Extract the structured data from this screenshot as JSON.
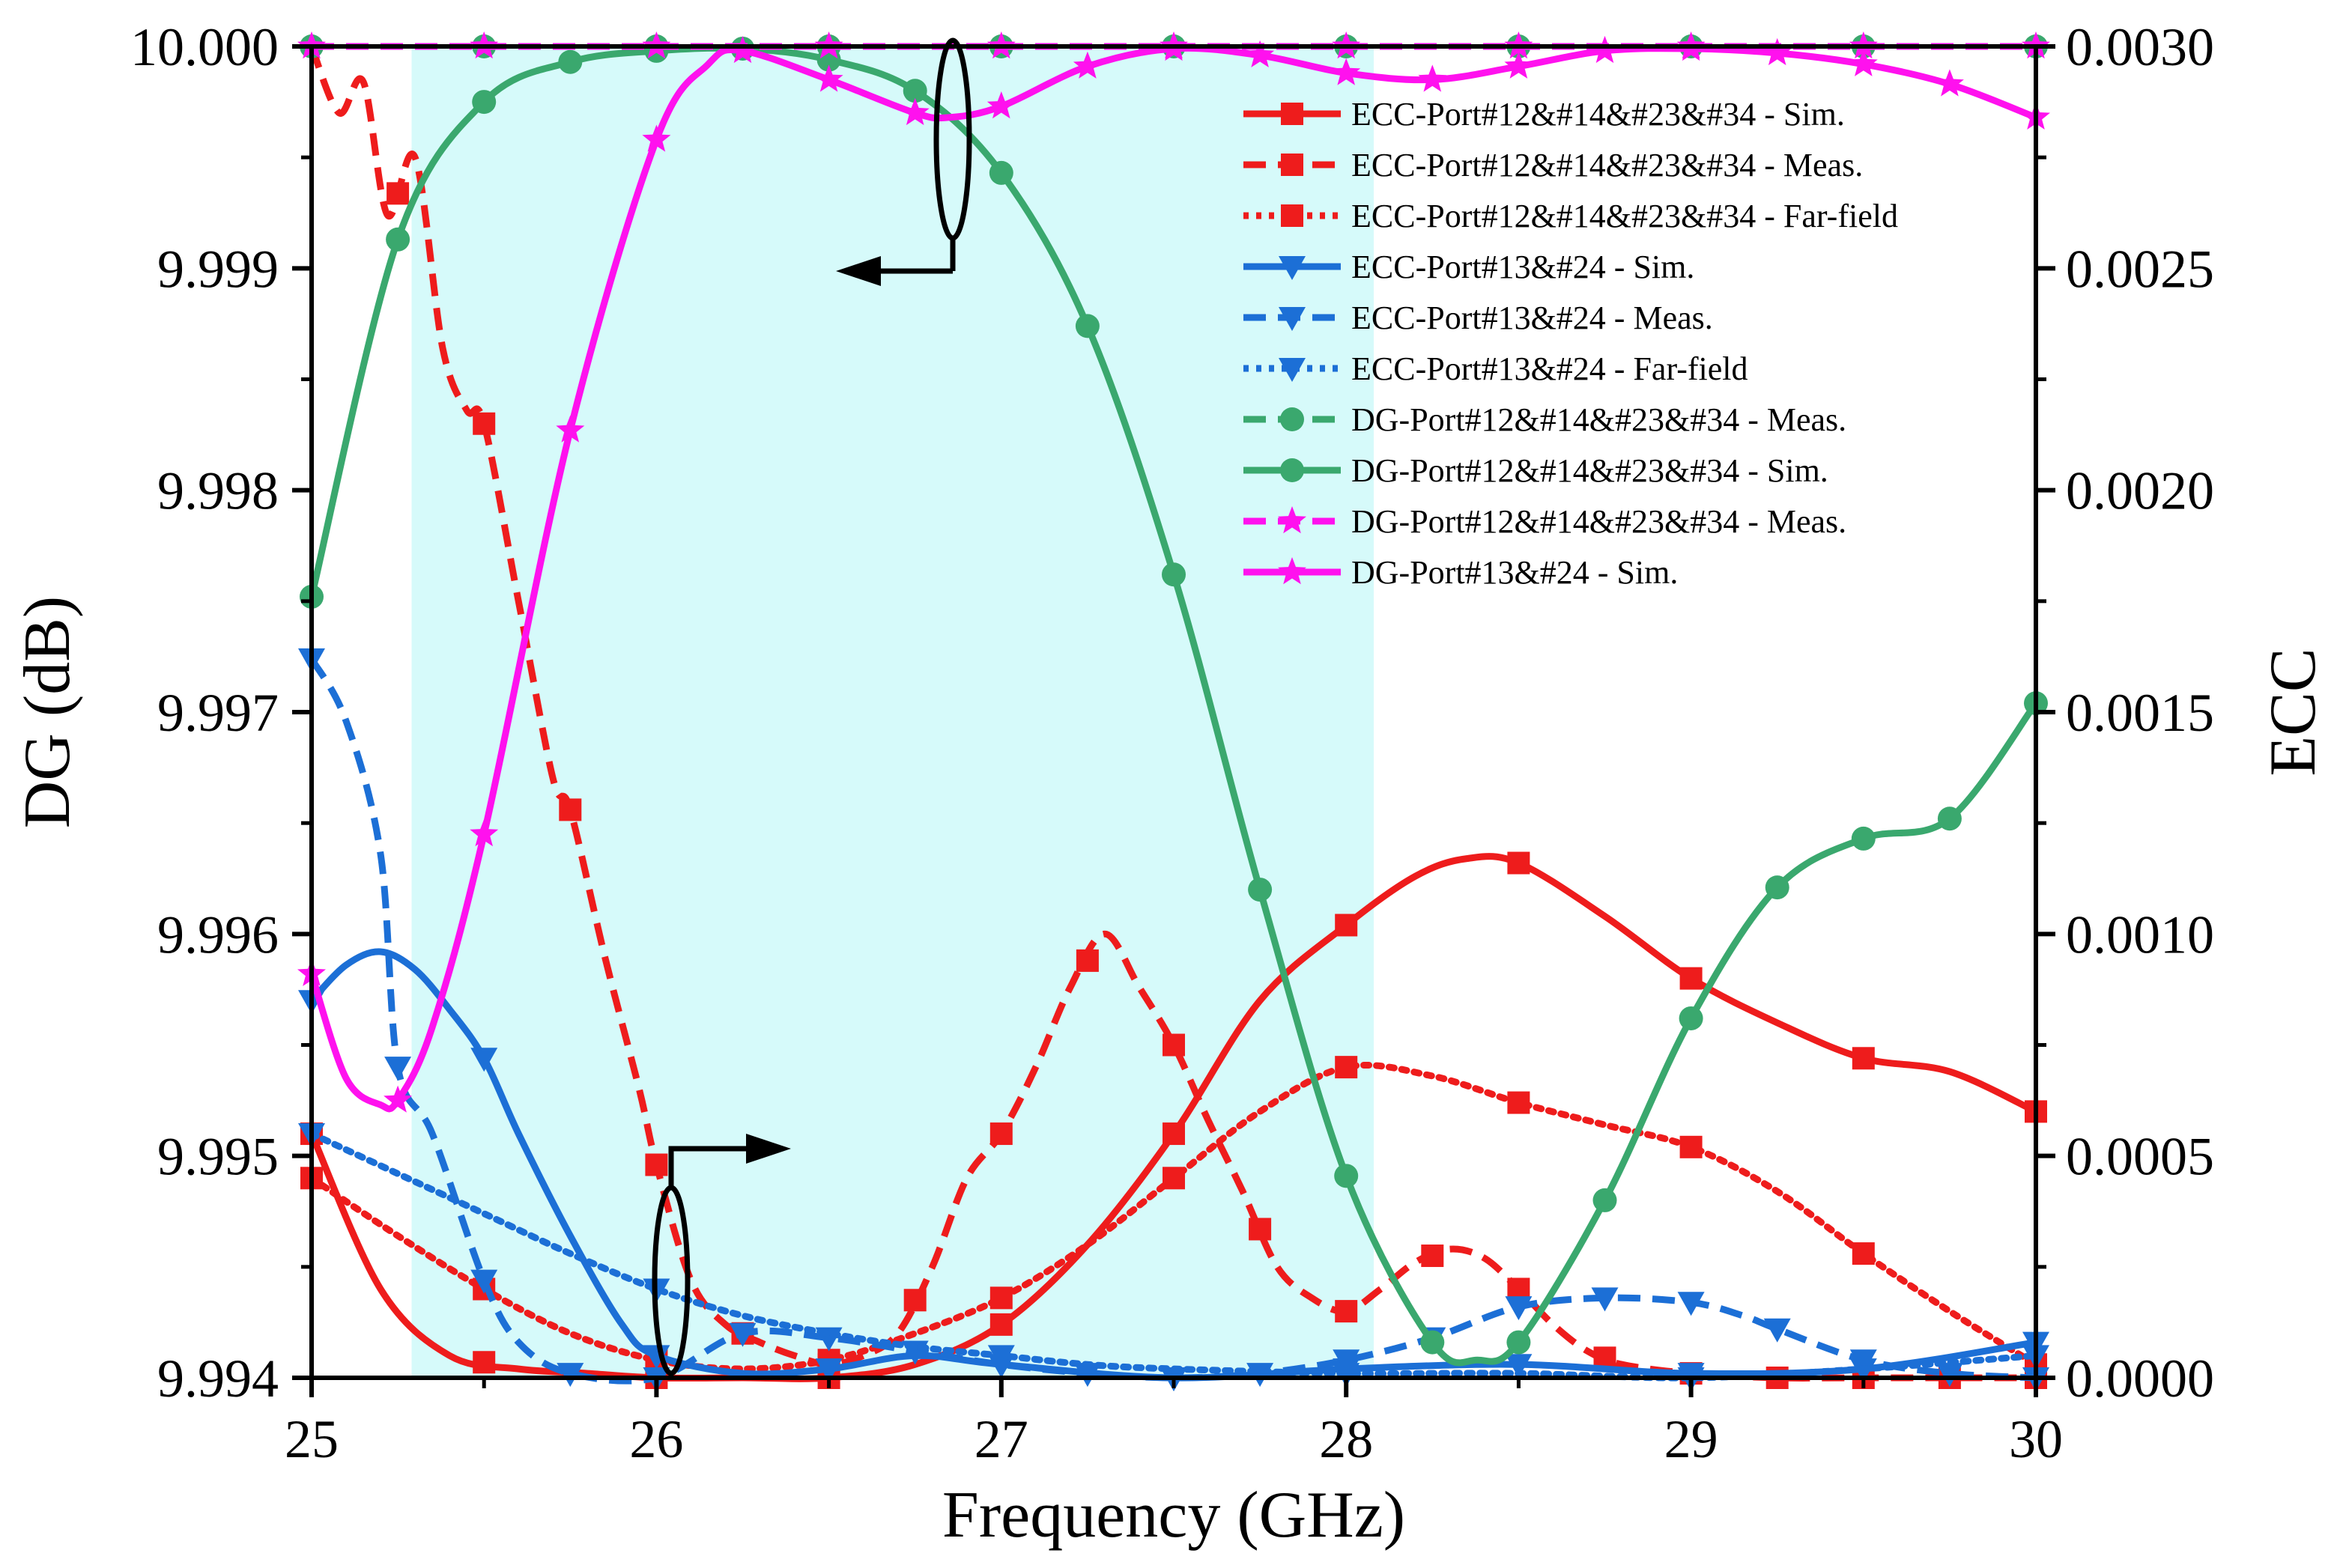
{
  "chart_data": {
    "type": "line",
    "xlabel": "Frequency (GHz)",
    "ylabel_left": "DG (dB)",
    "ylabel_right": "ECC",
    "xlim": [
      25,
      30
    ],
    "ylim_left": [
      9.994,
      10.0
    ],
    "ylim_right": [
      0.0,
      0.003
    ],
    "xticks": [
      "25",
      "26",
      "27",
      "28",
      "29",
      "30"
    ],
    "yticks_left": [
      "9.994",
      "9.995",
      "9.996",
      "9.997",
      "9.998",
      "9.999",
      "10.000"
    ],
    "yticks_right": [
      "0.0000",
      "0.0005",
      "0.0010",
      "0.0015",
      "0.0020",
      "0.0025",
      "0.0030"
    ],
    "shaded_band": {
      "x": [
        25.29,
        28.08
      ],
      "color": "#d6fafa"
    },
    "legend_position": "top-right",
    "series": [
      {
        "name": "ECC-Port#12&#14&#23&#34 - Sim.",
        "axis": "right",
        "color": "#ee1c1c",
        "dash": "solid",
        "marker": "square",
        "markers_x": [
          25.0,
          25.5,
          26.0,
          26.5,
          27.0,
          27.5,
          28.0,
          28.5,
          29.0,
          29.5,
          30.0
        ],
        "x": [
          25.0,
          25.2,
          25.4,
          25.6,
          25.8,
          26.0,
          26.25,
          26.5,
          26.75,
          27.0,
          27.25,
          27.5,
          27.75,
          28.0,
          28.2,
          28.35,
          28.5,
          28.75,
          29.0,
          29.25,
          29.5,
          29.75,
          30.0
        ],
        "y": [
          0.00055,
          0.0002,
          5e-05,
          2e-05,
          1e-05,
          0.0,
          0.0,
          0.0,
          3e-05,
          0.00012,
          0.0003,
          0.00055,
          0.00085,
          0.00102,
          0.00113,
          0.00117,
          0.00116,
          0.00104,
          0.0009,
          0.0008,
          0.00072,
          0.00069,
          0.0006
        ]
      },
      {
        "name": "ECC-Port#12&#14&#23&#34 - Meas.",
        "axis": "right",
        "color": "#ee1c1c",
        "dash": "dash",
        "marker": "square",
        "markers_x": [
          25.25,
          25.5,
          25.75,
          26.0,
          26.25,
          26.5,
          26.75,
          27.0,
          27.25,
          27.5,
          27.75,
          28.0,
          28.25,
          28.5,
          28.75,
          29.0,
          29.25,
          29.5,
          29.75,
          30.0
        ],
        "x": [
          25.0,
          25.08,
          25.15,
          25.22,
          25.3,
          25.38,
          25.45,
          25.5,
          25.6,
          25.7,
          25.75,
          25.85,
          25.95,
          26.0,
          26.1,
          26.2,
          26.3,
          26.4,
          26.5,
          26.6,
          26.7,
          26.8,
          26.9,
          27.0,
          27.1,
          27.2,
          27.3,
          27.4,
          27.5,
          27.6,
          27.7,
          27.8,
          27.9,
          28.0,
          28.1,
          28.2,
          28.3,
          28.4,
          28.5,
          28.6,
          28.7,
          28.8,
          29.0,
          29.25,
          29.5,
          30.0
        ],
        "y": [
          0.003,
          0.00285,
          0.00292,
          0.00262,
          0.00275,
          0.00232,
          0.00218,
          0.00215,
          0.00175,
          0.00135,
          0.00128,
          0.00095,
          0.00065,
          0.00048,
          0.00022,
          0.00012,
          8e-05,
          5e-05,
          3e-05,
          5e-05,
          0.0001,
          0.00025,
          0.00045,
          0.00055,
          0.0007,
          0.00088,
          0.001,
          0.00088,
          0.00075,
          0.00058,
          0.00042,
          0.00025,
          0.00018,
          0.00015,
          0.0002,
          0.00026,
          0.00029,
          0.00027,
          0.0002,
          0.00012,
          6e-05,
          3e-05,
          1e-05,
          0.0,
          0.0,
          0.0
        ]
      },
      {
        "name": "ECC-Port#12&#14&#23&#34 - Far-field",
        "axis": "right",
        "color": "#ee1c1c",
        "dash": "dot",
        "marker": "square",
        "markers_x": [
          25.0,
          25.5,
          26.0,
          26.5,
          27.0,
          27.5,
          28.0,
          28.5,
          29.0,
          29.5,
          30.0
        ],
        "x": [
          25.0,
          25.25,
          25.5,
          25.75,
          26.0,
          26.25,
          26.5,
          26.75,
          27.0,
          27.25,
          27.5,
          27.75,
          28.0,
          28.25,
          28.5,
          28.75,
          29.0,
          29.25,
          29.5,
          29.75,
          30.0
        ],
        "y": [
          0.00045,
          0.00032,
          0.0002,
          0.0001,
          4e-05,
          2e-05,
          4e-05,
          0.0001,
          0.00018,
          0.0003,
          0.00045,
          0.0006,
          0.0007,
          0.00068,
          0.00062,
          0.00057,
          0.00052,
          0.00042,
          0.00028,
          0.00015,
          3e-05
        ]
      },
      {
        "name": "ECC-Port#13&#24 - Sim.",
        "axis": "right",
        "color": "#1c6fd6",
        "dash": "solid",
        "marker": "triangle-down",
        "markers_x": [
          25.0,
          25.5,
          26.0,
          26.5,
          27.0,
          27.5,
          28.0,
          28.5,
          29.0,
          29.5,
          30.0
        ],
        "x": [
          25.0,
          25.1,
          25.2,
          25.3,
          25.4,
          25.5,
          25.6,
          25.75,
          25.9,
          26.0,
          26.25,
          26.5,
          26.75,
          27.0,
          27.5,
          28.0,
          28.5,
          29.0,
          29.5,
          30.0
        ],
        "y": [
          0.00085,
          0.00093,
          0.00096,
          0.00092,
          0.00083,
          0.00072,
          0.00055,
          0.00032,
          0.00012,
          5e-05,
          1e-05,
          2e-05,
          5e-05,
          3e-05,
          0.0,
          2e-05,
          3e-05,
          1e-05,
          2e-05,
          8e-05
        ]
      },
      {
        "name": "ECC-Port#13&#24 - Meas.",
        "axis": "right",
        "color": "#1c6fd6",
        "dash": "dash",
        "marker": "triangle-down",
        "markers_x": [
          25.0,
          25.25,
          25.5,
          25.75,
          26.0,
          26.25,
          26.5,
          26.75,
          27.0,
          27.25,
          27.5,
          27.75,
          28.0,
          28.25,
          28.5,
          28.75,
          29.0,
          29.25,
          29.5,
          29.75,
          30.0
        ],
        "x": [
          25.0,
          25.1,
          25.2,
          25.25,
          25.35,
          25.5,
          25.6,
          25.75,
          26.0,
          26.25,
          26.5,
          26.75,
          27.0,
          27.25,
          27.5,
          27.75,
          28.0,
          28.25,
          28.5,
          28.75,
          29.0,
          29.15,
          29.25,
          29.5,
          29.75,
          30.0
        ],
        "y": [
          0.00162,
          0.00148,
          0.00118,
          0.0007,
          0.00055,
          0.00022,
          8e-05,
          1e-05,
          0.0,
          0.0001,
          9e-05,
          6e-05,
          3e-05,
          1e-05,
          0.0,
          1e-05,
          4e-05,
          9e-05,
          0.00016,
          0.00018,
          0.00017,
          0.00014,
          0.00011,
          4e-05,
          1e-05,
          0.0
        ]
      },
      {
        "name": "ECC-Port#13&#24 - Far-field",
        "axis": "right",
        "color": "#1c6fd6",
        "dash": "dot",
        "marker": "triangle-down",
        "markers_x": [
          25.0,
          26.0,
          27.0,
          28.0,
          29.0,
          30.0
        ],
        "x": [
          25.0,
          25.25,
          25.5,
          25.75,
          26.0,
          26.25,
          26.5,
          26.75,
          27.0,
          27.25,
          27.5,
          28.0,
          28.5,
          29.0,
          29.5,
          30.0
        ],
        "y": [
          0.00055,
          0.00046,
          0.00037,
          0.00028,
          0.0002,
          0.00014,
          0.0001,
          7e-05,
          5e-05,
          3e-05,
          2e-05,
          1e-05,
          1e-05,
          0.0,
          2e-05,
          5e-05
        ]
      },
      {
        "name": "DG-Port#12&#14&#23&#34 - Meas.",
        "axis": "left",
        "color": "#3aa86e",
        "dash": "dash",
        "marker": "circle",
        "markers_x": [
          25.0,
          25.5,
          26.0,
          26.5,
          27.0,
          27.5,
          28.0,
          28.5,
          29.0,
          29.5,
          30.0
        ],
        "x": [
          25.0,
          30.0
        ],
        "y": [
          10.0,
          10.0
        ]
      },
      {
        "name": "DG-Port#12&#14&#23&#34 - Sim.",
        "axis": "left",
        "color": "#3aa86e",
        "dash": "solid",
        "marker": "circle",
        "markers_x": [
          25.0,
          25.25,
          25.5,
          25.75,
          26.0,
          26.25,
          26.5,
          26.75,
          27.0,
          27.25,
          27.5,
          27.75,
          28.0,
          28.25,
          28.5,
          28.75,
          29.0,
          29.25,
          29.5,
          29.75,
          30.0
        ],
        "x": [
          25.0,
          25.25,
          25.5,
          25.75,
          26.0,
          26.25,
          26.5,
          26.75,
          27.0,
          27.25,
          27.5,
          27.75,
          28.0,
          28.25,
          28.38,
          28.5,
          28.75,
          29.0,
          29.25,
          29.5,
          29.75,
          30.0
        ],
        "y": [
          9.99752,
          9.99913,
          9.99975,
          9.99993,
          9.99998,
          9.99999,
          9.99994,
          9.9998,
          9.99943,
          9.99874,
          9.99762,
          9.9962,
          9.99491,
          9.99416,
          9.99408,
          9.99416,
          9.9948,
          9.99562,
          9.99621,
          9.99643,
          9.99652,
          9.99704
        ]
      },
      {
        "name": "DG-Port#12&#14&#23&#34 - Meas.",
        "axis": "left",
        "color": "#ff11ee",
        "dash": "dash",
        "marker": "star",
        "markers_x": [
          25.0,
          25.5,
          26.0,
          26.5,
          27.0,
          27.5,
          28.0,
          28.5,
          29.0,
          29.5,
          30.0
        ],
        "x": [
          25.0,
          30.0
        ],
        "y": [
          10.0,
          10.0
        ]
      },
      {
        "name": "DG-Port#13&#24 - Sim.",
        "axis": "left",
        "color": "#ff11ee",
        "dash": "solid",
        "marker": "star",
        "markers_x": [
          25.0,
          25.25,
          25.5,
          25.75,
          26.0,
          26.25,
          26.5,
          26.75,
          27.0,
          27.25,
          27.5,
          27.75,
          28.0,
          28.25,
          28.5,
          28.75,
          29.0,
          29.25,
          29.5,
          29.75,
          30.0
        ],
        "x": [
          25.0,
          25.1,
          25.2,
          25.25,
          25.35,
          25.5,
          25.75,
          26.0,
          26.15,
          26.25,
          26.5,
          26.75,
          26.85,
          27.0,
          27.25,
          27.5,
          27.75,
          28.0,
          28.25,
          28.5,
          28.75,
          29.0,
          29.25,
          29.5,
          29.75,
          30.0
        ],
        "y": [
          9.99582,
          9.99535,
          9.99523,
          9.99525,
          9.99558,
          9.99645,
          9.99827,
          9.99958,
          9.99992,
          9.99998,
          9.99985,
          9.9997,
          9.99968,
          9.99973,
          9.99991,
          9.99999,
          9.99996,
          9.99988,
          9.99985,
          9.99991,
          9.99998,
          9.99999,
          9.99997,
          9.99992,
          9.99983,
          9.99968
        ]
      }
    ]
  }
}
